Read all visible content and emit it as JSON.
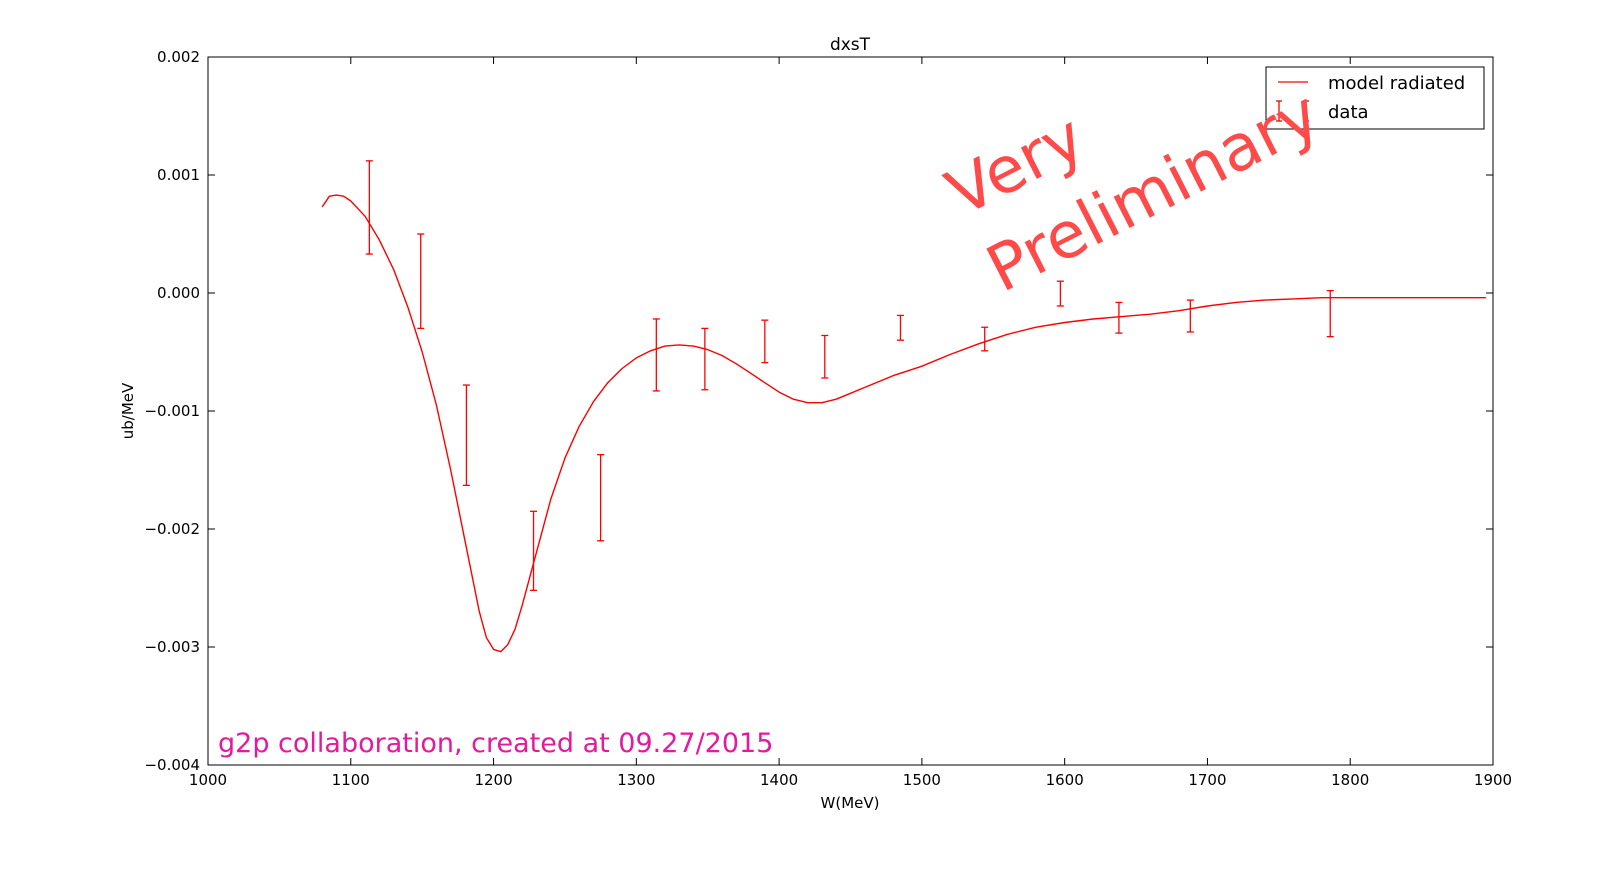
{
  "chart_data": {
    "type": "line",
    "title": "dxsT",
    "xlabel": "W(MeV)",
    "ylabel": "ub/MeV",
    "xlim": [
      1000,
      1900
    ],
    "ylim": [
      -0.004,
      0.002
    ],
    "xticks": [
      1000,
      1100,
      1200,
      1300,
      1400,
      1500,
      1600,
      1700,
      1800,
      1900
    ],
    "xtick_labels": [
      "1000",
      "1100",
      "1200",
      "1300",
      "1400",
      "1500",
      "1600",
      "1700",
      "1800",
      "1900"
    ],
    "yticks": [
      -0.004,
      -0.003,
      -0.002,
      -0.001,
      0.0,
      0.001,
      0.002
    ],
    "ytick_labels": [
      "−0.004",
      "−0.003",
      "−0.002",
      "−0.001",
      "0.000",
      "0.001",
      "0.002"
    ],
    "grid": false,
    "legend_position": "top-right",
    "color": "#ff0000",
    "series": [
      {
        "name": "model radiated",
        "kind": "line",
        "x": [
          1080,
          1085,
          1090,
          1095,
          1100,
          1110,
          1120,
          1130,
          1140,
          1150,
          1160,
          1170,
          1180,
          1190,
          1195,
          1200,
          1205,
          1210,
          1215,
          1220,
          1230,
          1240,
          1250,
          1260,
          1270,
          1280,
          1290,
          1300,
          1310,
          1320,
          1330,
          1340,
          1350,
          1360,
          1370,
          1380,
          1390,
          1400,
          1410,
          1420,
          1430,
          1440,
          1450,
          1460,
          1470,
          1480,
          1490,
          1500,
          1520,
          1540,
          1560,
          1580,
          1600,
          1620,
          1640,
          1660,
          1680,
          1700,
          1720,
          1740,
          1760,
          1780,
          1800,
          1850,
          1895
        ],
        "y": [
          0.00073,
          0.00082,
          0.00083,
          0.00082,
          0.00078,
          0.00065,
          0.00045,
          0.0002,
          -0.00012,
          -0.0005,
          -0.00095,
          -0.0015,
          -0.0021,
          -0.0027,
          -0.00292,
          -0.00302,
          -0.00304,
          -0.00298,
          -0.00285,
          -0.00265,
          -0.0022,
          -0.00175,
          -0.0014,
          -0.00113,
          -0.00092,
          -0.00076,
          -0.00064,
          -0.00055,
          -0.00049,
          -0.00045,
          -0.00044,
          -0.00045,
          -0.00048,
          -0.00053,
          -0.0006,
          -0.00068,
          -0.00076,
          -0.00084,
          -0.0009,
          -0.00093,
          -0.00093,
          -0.0009,
          -0.00085,
          -0.0008,
          -0.00075,
          -0.0007,
          -0.00066,
          -0.00062,
          -0.00052,
          -0.00043,
          -0.00035,
          -0.00029,
          -0.00025,
          -0.00022,
          -0.0002,
          -0.00018,
          -0.00015,
          -0.00011,
          -8e-05,
          -6e-05,
          -5e-05,
          -4e-05,
          -4e-05,
          -4e-05,
          -4e-05
        ]
      },
      {
        "name": "data",
        "kind": "errorbar",
        "x": [
          1113,
          1149,
          1181,
          1228,
          1275,
          1314,
          1348,
          1390,
          1432,
          1485,
          1544,
          1597,
          1638,
          1688,
          1786
        ],
        "ylow": [
          0.00033,
          -0.0003,
          -0.00163,
          -0.00252,
          -0.0021,
          -0.00083,
          -0.00082,
          -0.00059,
          -0.00072,
          -0.0004,
          -0.00049,
          -0.00011,
          -0.00034,
          -0.00033,
          -0.00037
        ],
        "yhigh": [
          0.00112,
          0.0005,
          -0.00078,
          -0.00185,
          -0.00137,
          -0.00022,
          -0.0003,
          -0.00023,
          -0.00036,
          -0.00019,
          -0.00029,
          0.0001,
          -8e-05,
          -6e-05,
          2e-05
        ]
      }
    ],
    "annotations": [
      {
        "text": "Very"
      },
      {
        "text": "Preliminary"
      },
      {
        "text": "g2p collaboration, created at 09.27/2015"
      }
    ]
  }
}
